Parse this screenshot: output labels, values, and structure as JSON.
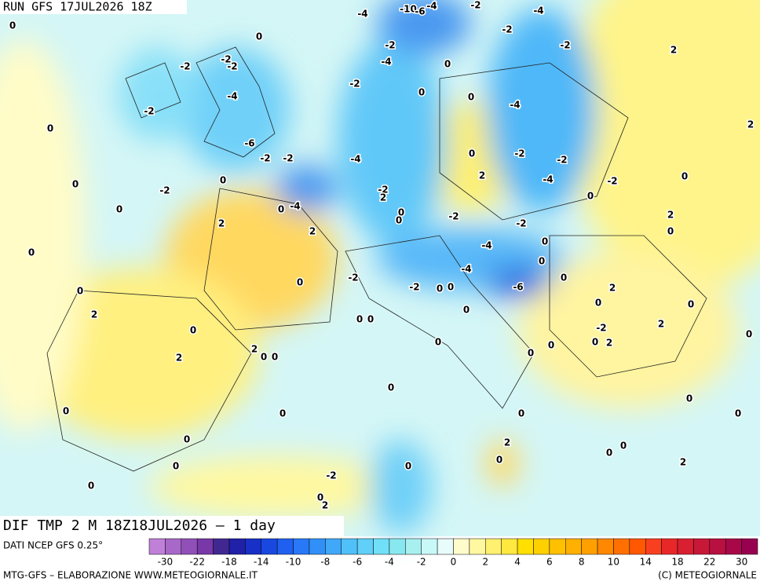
{
  "header": {
    "run": "RUN GFS 17JUL2026 18Z",
    "title": "DIF TMP 2 M 18Z18JUL2026 – 1 day"
  },
  "map": {
    "contour_labels": [
      "0",
      "-4",
      "-10",
      "-4",
      "-6",
      "-2",
      "-4",
      "0",
      "-2",
      "-2",
      "-2",
      "2",
      "-2",
      "-2",
      "-2",
      "-4",
      "0",
      "-2",
      "-4",
      "0",
      "0",
      "-4",
      "-2",
      "0",
      "2",
      "-6",
      "-2",
      "-2",
      "-4",
      "0",
      "-2",
      "-2",
      "2",
      "0",
      "-2",
      "0",
      "-2",
      "2",
      "-4",
      "-2",
      "0",
      "0",
      "0",
      "-4",
      "0",
      "-2",
      "0",
      "2",
      "0",
      "2",
      "2",
      "0",
      "-2",
      "0",
      "-4",
      "0",
      "-4",
      "0",
      "-2",
      "0",
      "-2",
      "0",
      "-6",
      "0",
      "2",
      "0",
      "2",
      "0",
      "0",
      "0",
      "0",
      "0",
      "-2",
      "2",
      "0",
      "0",
      "0",
      "2",
      "0",
      "0",
      "0",
      "2",
      "0",
      "0",
      "2",
      "0",
      "0",
      "0",
      "0",
      "0",
      "0",
      "0",
      "2",
      "0",
      "0",
      "0",
      "2",
      "0",
      "0",
      "-2",
      "0",
      "0",
      "2",
      "0"
    ]
  },
  "legend": {
    "source": "DATI NCEP GFS 0.25°",
    "colors": [
      "#c080d8",
      "#a868c8",
      "#9050b8",
      "#7838a8",
      "#402890",
      "#2020a8",
      "#1830c8",
      "#1848e0",
      "#2060f0",
      "#2878f8",
      "#3090f8",
      "#40a8f8",
      "#50c0f8",
      "#60d0f8",
      "#70e0f8",
      "#88e8f0",
      "#a8f0f0",
      "#c8f8f8",
      "#e8fcfc",
      "#fffccc",
      "#fff8a0",
      "#fff070",
      "#ffe840",
      "#ffe000",
      "#ffd000",
      "#ffc000",
      "#ffb000",
      "#ffa000",
      "#ff8800",
      "#ff7000",
      "#ff5800",
      "#f84020",
      "#e82828",
      "#d82030",
      "#c81838",
      "#b81040",
      "#a80848",
      "#980050"
    ],
    "labels": [
      "-30",
      "-22",
      "-18",
      "-14",
      "-10",
      "-8",
      "-6",
      "-4",
      "-2",
      "0",
      "2",
      "4",
      "6",
      "8",
      "10",
      "14",
      "18",
      "22",
      "30"
    ]
  },
  "footer": {
    "credit": "MTG-GFS – ELABORAZIONE WWW.METEOGIORNALE.IT",
    "copyright": "(C) METEOGIORNALE"
  }
}
